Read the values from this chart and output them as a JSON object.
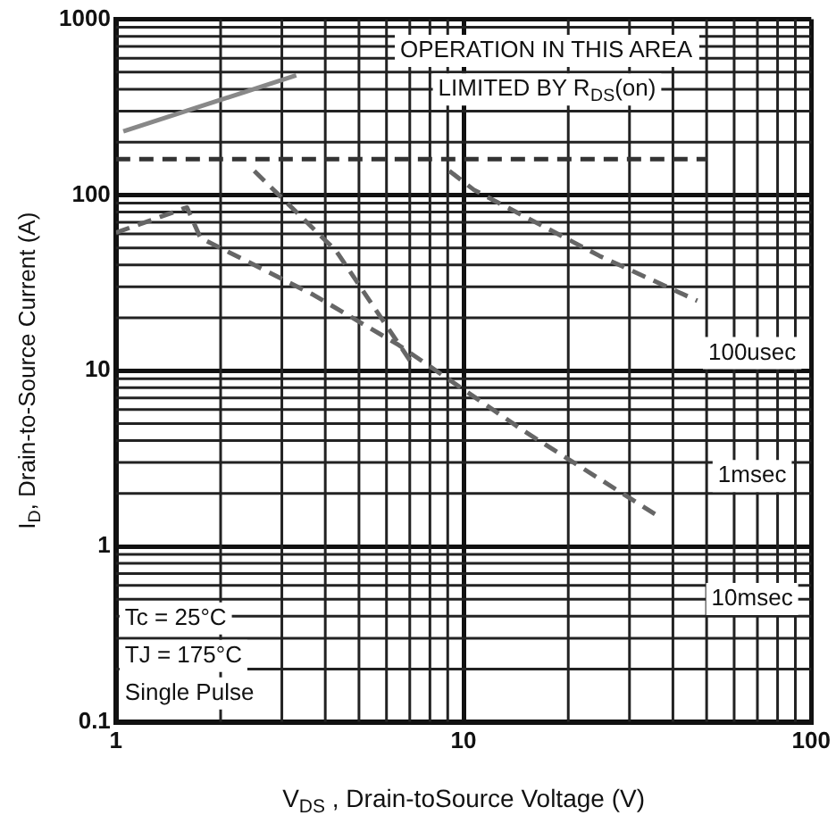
{
  "chart_data": {
    "type": "line",
    "xlabel": "V$_{DS}$ , Drain-toSource Voltage (V)",
    "ylabel": "I$_{D}$, Drain-to-Source Current (A)",
    "log": "xy",
    "grid": true,
    "legend": false,
    "marker": "none",
    "xlim": [
      1,
      100
    ],
    "xticks": [
      1,
      10,
      100
    ],
    "ylim": [
      0.1,
      1000
    ],
    "yticks": [
      0.1,
      1,
      10,
      100,
      1000
    ],
    "series": [
      {
        "x": [
          1.05,
          3.3
        ],
        "values": [
          230,
          480
        ],
        "color": "#888888",
        "line_style": "solid"
      },
      {
        "x": [
          1,
          50
        ],
        "values": [
          160,
          160
        ],
        "color": "#333333",
        "line_style": "dashed"
      },
      {
        "x": [
          9.1,
          10.7,
          24.6,
          47
        ],
        "values": [
          137,
          107,
          45,
          25
        ],
        "color": "#666666",
        "line_style": "dashed"
      },
      {
        "x": [
          1,
          1.6,
          1.75,
          3.7,
          6.5,
          15,
          37
        ],
        "values": [
          61,
          85,
          57,
          27,
          14,
          4.5,
          1.45
        ],
        "color": "#666666",
        "line_style": "dashed"
      },
      {
        "x": [
          2.5,
          4.3,
          6,
          7.1
        ],
        "values": [
          137,
          48,
          18,
          11
        ],
        "color": "#666666",
        "line_style": "dashed"
      }
    ],
    "annotations": [
      "OPERATION IN THIS AREA",
      "LIMITED BY R$_{DS}$(on)",
      "100usec",
      "1msec",
      "10msec",
      "Tc = 25°C",
      "TJ = 175°C",
      "Single Pulse"
    ]
  }
}
